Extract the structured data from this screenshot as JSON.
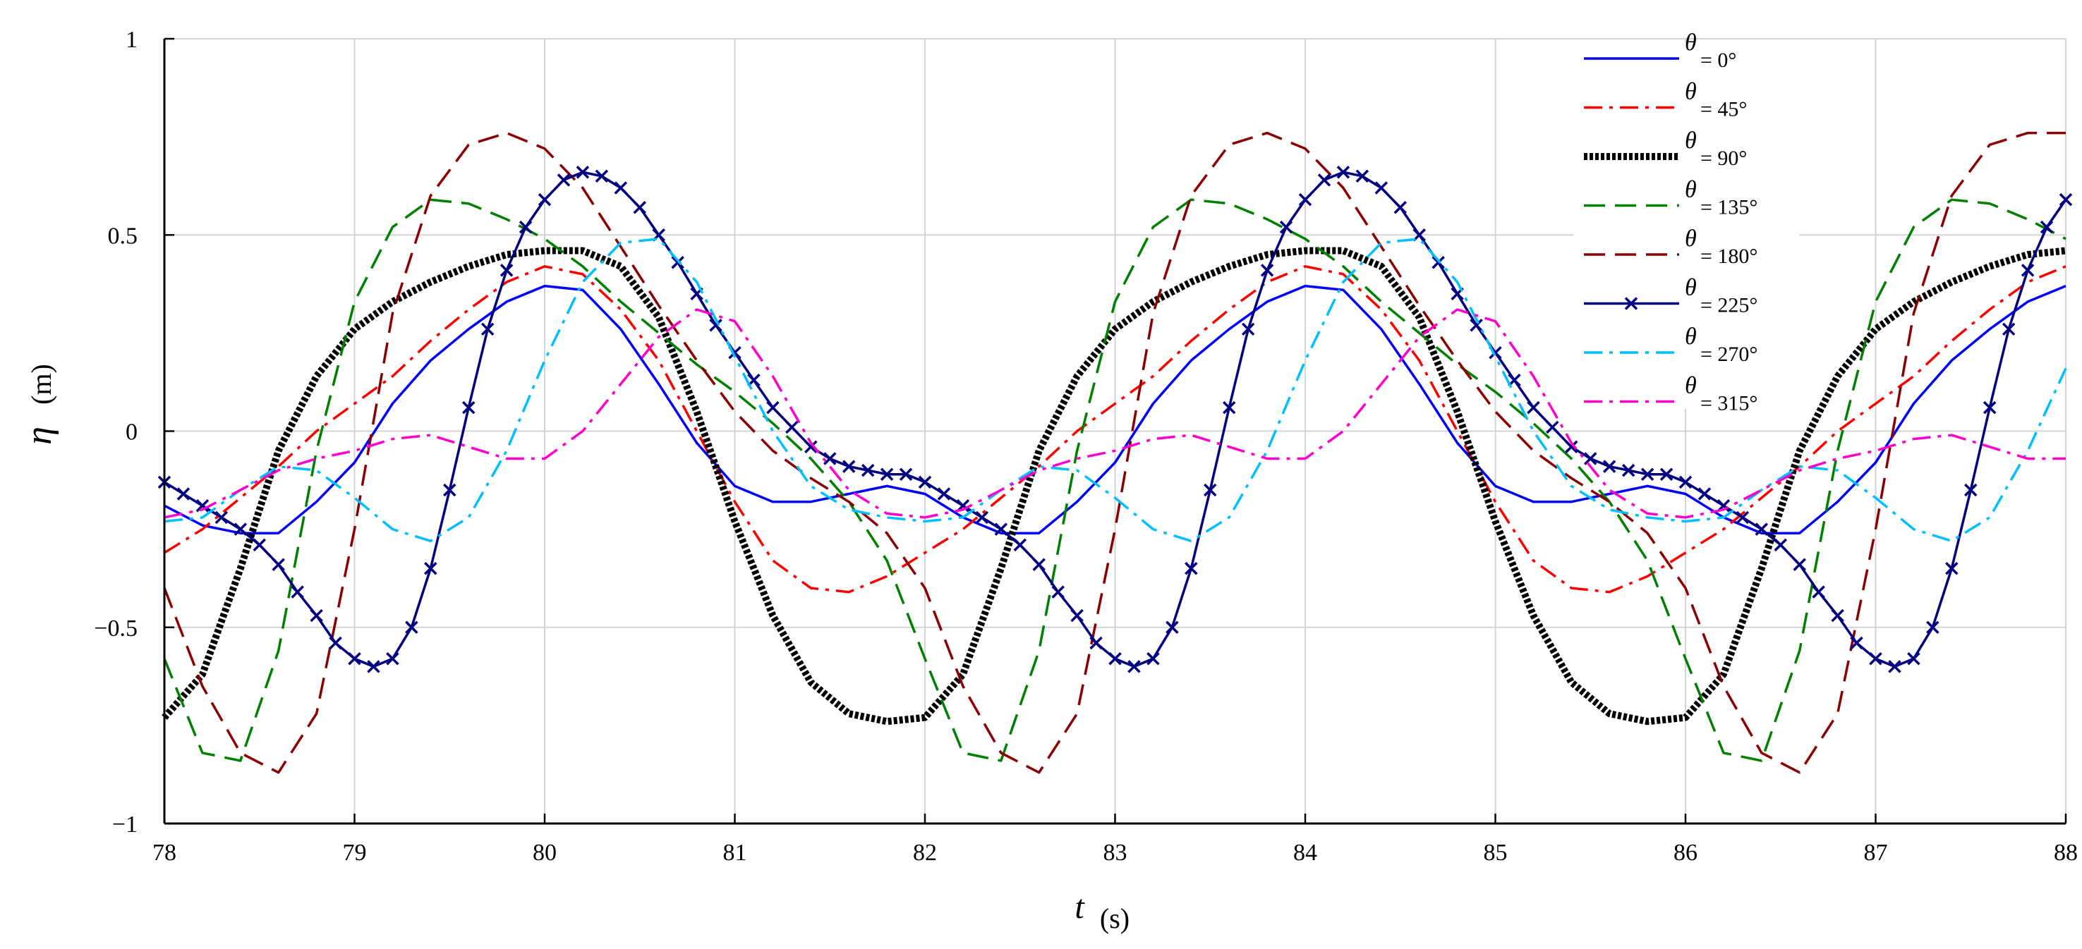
{
  "chart_data": {
    "type": "line",
    "title": "",
    "xlabel": {
      "symbol": "t",
      "unit": "(s)"
    },
    "ylabel": {
      "symbol": "η",
      "unit": "(m)"
    },
    "xlim": [
      78,
      88
    ],
    "ylim": [
      -1,
      1
    ],
    "grid": true,
    "legend_position": "top-right",
    "x_ticks": [
      {
        "value": 78,
        "label": "78"
      },
      {
        "value": 79,
        "label": "79"
      },
      {
        "value": 80,
        "label": "80"
      },
      {
        "value": 81,
        "label": "81"
      },
      {
        "value": 82,
        "label": "82"
      },
      {
        "value": 83,
        "label": "83"
      },
      {
        "value": 84,
        "label": "84"
      },
      {
        "value": 85,
        "label": "85"
      },
      {
        "value": 86,
        "label": "86"
      },
      {
        "value": 87,
        "label": "87"
      },
      {
        "value": 88,
        "label": "88"
      }
    ],
    "y_ticks": [
      {
        "value": -1,
        "label": "−1"
      },
      {
        "value": -0.5,
        "label": "−0.5"
      },
      {
        "value": 0,
        "label": "0"
      },
      {
        "value": 0.5,
        "label": "0.5"
      },
      {
        "value": 1,
        "label": "1"
      }
    ],
    "series": [
      {
        "name_symbol": "θ",
        "name": "= 0°",
        "color": "#0000FF",
        "style": "solid",
        "x": [
          78.0,
          78.2,
          78.4,
          78.6,
          78.8,
          79.0,
          79.2,
          79.4,
          79.6,
          79.8,
          80.0,
          80.2,
          80.4,
          80.6,
          80.8,
          81.0,
          81.2,
          81.4,
          81.6,
          81.8,
          82.0,
          82.2,
          82.4,
          82.6,
          82.8,
          83.0,
          83.2,
          83.4,
          83.6,
          83.8,
          84.0,
          84.2,
          84.4,
          84.6,
          84.8,
          85.0,
          85.2,
          85.4,
          85.6,
          85.8,
          86.0,
          86.2,
          86.4,
          86.6,
          86.8,
          87.0,
          87.2,
          87.4,
          87.6,
          87.8,
          88.0
        ],
        "y": [
          -0.19,
          -0.24,
          -0.26,
          -0.26,
          -0.18,
          -0.08,
          0.07,
          0.18,
          0.26,
          0.33,
          0.37,
          0.36,
          0.26,
          0.12,
          -0.03,
          -0.14,
          -0.18,
          -0.18,
          -0.16,
          -0.14,
          -0.16,
          -0.22,
          -0.26,
          -0.26,
          -0.18,
          -0.08,
          0.07,
          0.18,
          0.26,
          0.33,
          0.37,
          0.36,
          0.26,
          0.12,
          -0.03,
          -0.14,
          -0.18,
          -0.18,
          -0.16,
          -0.14,
          -0.16,
          -0.22,
          -0.26,
          -0.26,
          -0.18,
          -0.08,
          0.07,
          0.18,
          0.26,
          0.33,
          0.37
        ]
      },
      {
        "name_symbol": "θ",
        "name": "= 45°",
        "color": "#FF0000",
        "style": "dashdot",
        "x": [
          78.0,
          78.2,
          78.4,
          78.6,
          78.8,
          79.0,
          79.2,
          79.4,
          79.6,
          79.8,
          80.0,
          80.2,
          80.4,
          80.6,
          80.8,
          81.0,
          81.2,
          81.4,
          81.6,
          81.8,
          82.0,
          82.2,
          82.4,
          82.6,
          82.8,
          83.0,
          83.2,
          83.4,
          83.6,
          83.8,
          84.0,
          84.2,
          84.4,
          84.6,
          84.8,
          85.0,
          85.2,
          85.4,
          85.6,
          85.8,
          86.0,
          86.2,
          86.4,
          86.6,
          86.8,
          87.0,
          87.2,
          87.4,
          87.6,
          87.8,
          88.0
        ],
        "y": [
          -0.31,
          -0.25,
          -0.17,
          -0.09,
          0.0,
          0.07,
          0.14,
          0.23,
          0.31,
          0.38,
          0.42,
          0.4,
          0.31,
          0.18,
          0.0,
          -0.18,
          -0.33,
          -0.4,
          -0.41,
          -0.37,
          -0.31,
          -0.25,
          -0.17,
          -0.09,
          0.0,
          0.07,
          0.14,
          0.23,
          0.31,
          0.38,
          0.42,
          0.4,
          0.31,
          0.18,
          0.0,
          -0.18,
          -0.33,
          -0.4,
          -0.41,
          -0.37,
          -0.31,
          -0.25,
          -0.17,
          -0.09,
          0.0,
          0.07,
          0.14,
          0.23,
          0.31,
          0.38,
          0.42
        ]
      },
      {
        "name_symbol": "θ",
        "name": "= 90°",
        "color": "#000000",
        "style": "dotted",
        "x": [
          78.0,
          78.2,
          78.4,
          78.6,
          78.8,
          79.0,
          79.2,
          79.4,
          79.6,
          79.8,
          80.0,
          80.2,
          80.4,
          80.6,
          80.8,
          81.0,
          81.2,
          81.4,
          81.6,
          81.8,
          82.0,
          82.2,
          82.4,
          82.6,
          82.8,
          83.0,
          83.2,
          83.4,
          83.6,
          83.8,
          84.0,
          84.2,
          84.4,
          84.6,
          84.8,
          85.0,
          85.2,
          85.4,
          85.6,
          85.8,
          86.0,
          86.2,
          86.4,
          86.6,
          86.8,
          87.0,
          87.2,
          87.4,
          87.6,
          87.8,
          88.0
        ],
        "y": [
          -0.73,
          -0.62,
          -0.35,
          -0.05,
          0.14,
          0.26,
          0.33,
          0.38,
          0.42,
          0.45,
          0.46,
          0.46,
          0.42,
          0.29,
          0.05,
          -0.23,
          -0.47,
          -0.64,
          -0.72,
          -0.74,
          -0.73,
          -0.62,
          -0.35,
          -0.05,
          0.14,
          0.26,
          0.33,
          0.38,
          0.42,
          0.45,
          0.46,
          0.46,
          0.42,
          0.29,
          0.05,
          -0.23,
          -0.47,
          -0.64,
          -0.72,
          -0.74,
          -0.73,
          -0.62,
          -0.35,
          -0.05,
          0.14,
          0.26,
          0.33,
          0.38,
          0.42,
          0.45,
          0.46
        ]
      },
      {
        "name_symbol": "θ",
        "name": "= 135°",
        "color": "#008000",
        "style": "dashed",
        "x": [
          78.0,
          78.2,
          78.4,
          78.6,
          78.8,
          79.0,
          79.2,
          79.4,
          79.6,
          79.8,
          80.0,
          80.2,
          80.4,
          80.6,
          80.8,
          81.0,
          81.2,
          81.4,
          81.6,
          81.8,
          82.0,
          82.2,
          82.4,
          82.6,
          82.8,
          83.0,
          83.2,
          83.4,
          83.6,
          83.8,
          84.0,
          84.2,
          84.4,
          84.6,
          84.8,
          85.0,
          85.2,
          85.4,
          85.6,
          85.8,
          86.0,
          86.2,
          86.4,
          86.6,
          86.8,
          87.0,
          87.2,
          87.4,
          87.6,
          87.8,
          88.0
        ],
        "y": [
          -0.58,
          -0.82,
          -0.84,
          -0.56,
          -0.05,
          0.33,
          0.52,
          0.59,
          0.58,
          0.54,
          0.49,
          0.42,
          0.33,
          0.25,
          0.17,
          0.1,
          0.02,
          -0.07,
          -0.18,
          -0.33,
          -0.58,
          -0.82,
          -0.84,
          -0.56,
          -0.05,
          0.33,
          0.52,
          0.59,
          0.58,
          0.54,
          0.49,
          0.42,
          0.33,
          0.25,
          0.17,
          0.1,
          0.02,
          -0.07,
          -0.18,
          -0.33,
          -0.58,
          -0.82,
          -0.84,
          -0.56,
          -0.05,
          0.33,
          0.52,
          0.59,
          0.58,
          0.54,
          0.49
        ]
      },
      {
        "name_symbol": "θ",
        "name": "= 180°",
        "color": "#8B0000",
        "style": "longdash",
        "x": [
          78.0,
          78.2,
          78.4,
          78.6,
          78.8,
          79.0,
          79.2,
          79.4,
          79.6,
          79.8,
          80.0,
          80.2,
          80.4,
          80.6,
          80.8,
          81.0,
          81.2,
          81.4,
          81.6,
          81.8,
          82.0,
          82.2,
          82.4,
          82.6,
          82.8,
          83.0,
          83.2,
          83.4,
          83.6,
          83.8,
          84.0,
          84.2,
          84.4,
          84.6,
          84.8,
          85.0,
          85.2,
          85.4,
          85.6,
          85.8,
          86.0,
          86.2,
          86.4,
          86.6,
          86.8,
          87.0,
          87.2,
          87.4,
          87.6,
          87.8,
          88.0
        ],
        "y": [
          -0.4,
          -0.65,
          -0.82,
          -0.87,
          -0.72,
          -0.25,
          0.3,
          0.6,
          0.73,
          0.76,
          0.72,
          0.62,
          0.47,
          0.32,
          0.18,
          0.05,
          -0.05,
          -0.12,
          -0.18,
          -0.26,
          -0.4,
          -0.65,
          -0.82,
          -0.87,
          -0.72,
          -0.25,
          0.3,
          0.6,
          0.73,
          0.76,
          0.72,
          0.62,
          0.47,
          0.32,
          0.18,
          0.05,
          -0.05,
          -0.12,
          -0.18,
          -0.26,
          -0.4,
          -0.65,
          -0.82,
          -0.87,
          -0.72,
          -0.25,
          0.3,
          0.6,
          0.73,
          0.76,
          0.76
        ]
      },
      {
        "name_symbol": "θ",
        "name": "= 225°",
        "color": "#000080",
        "style": "solid-x",
        "x": [
          78.0,
          78.1,
          78.2,
          78.3,
          78.4,
          78.5,
          78.6,
          78.7,
          78.8,
          78.9,
          79.0,
          79.1,
          79.2,
          79.3,
          79.4,
          79.5,
          79.6,
          79.7,
          79.8,
          79.9,
          80.0,
          80.1,
          80.2,
          80.3,
          80.4,
          80.5,
          80.6,
          80.7,
          80.8,
          80.9,
          81.0,
          81.1,
          81.2,
          81.3,
          81.4,
          81.5,
          81.6,
          81.7,
          81.8,
          81.9,
          82.0,
          82.1,
          82.2,
          82.3,
          82.4,
          82.5,
          82.6,
          82.7,
          82.8,
          82.9,
          83.0,
          83.1,
          83.2,
          83.3,
          83.4,
          83.5,
          83.6,
          83.7,
          83.8,
          83.9,
          84.0,
          84.1,
          84.2,
          84.3,
          84.4,
          84.5,
          84.6,
          84.7,
          84.8,
          84.9,
          85.0,
          85.1,
          85.2,
          85.3,
          85.4,
          85.5,
          85.6,
          85.7,
          85.8,
          85.9,
          86.0,
          86.1,
          86.2,
          86.3,
          86.4,
          86.5,
          86.6,
          86.7,
          86.8,
          86.9,
          87.0,
          87.1,
          87.2,
          87.3,
          87.4,
          87.5,
          87.6,
          87.7,
          87.8,
          87.9,
          88.0
        ],
        "y": [
          -0.13,
          -0.16,
          -0.19,
          -0.22,
          -0.25,
          -0.29,
          -0.34,
          -0.41,
          -0.47,
          -0.54,
          -0.58,
          -0.6,
          -0.58,
          -0.5,
          -0.35,
          -0.15,
          0.06,
          0.26,
          0.41,
          0.52,
          0.59,
          0.64,
          0.66,
          0.65,
          0.62,
          0.57,
          0.5,
          0.43,
          0.35,
          0.27,
          0.2,
          0.13,
          0.06,
          0.01,
          -0.04,
          -0.07,
          -0.09,
          -0.1,
          -0.11,
          -0.11,
          -0.13,
          -0.16,
          -0.19,
          -0.22,
          -0.25,
          -0.29,
          -0.34,
          -0.41,
          -0.47,
          -0.54,
          -0.58,
          -0.6,
          -0.58,
          -0.5,
          -0.35,
          -0.15,
          0.06,
          0.26,
          0.41,
          0.52,
          0.59,
          0.64,
          0.66,
          0.65,
          0.62,
          0.57,
          0.5,
          0.43,
          0.35,
          0.27,
          0.2,
          0.13,
          0.06,
          0.01,
          -0.04,
          -0.07,
          -0.09,
          -0.1,
          -0.11,
          -0.11,
          -0.13,
          -0.16,
          -0.19,
          -0.22,
          -0.25,
          -0.29,
          -0.34,
          -0.41,
          -0.47,
          -0.54,
          -0.58,
          -0.6,
          -0.58,
          -0.5,
          -0.35,
          -0.15,
          0.06,
          0.26,
          0.41,
          0.52,
          0.59
        ]
      },
      {
        "name_symbol": "θ",
        "name": "= 270°",
        "color": "#00BFFF",
        "style": "dashdot",
        "x": [
          78.0,
          78.2,
          78.4,
          78.6,
          78.8,
          79.0,
          79.2,
          79.4,
          79.6,
          79.8,
          80.0,
          80.2,
          80.4,
          80.6,
          80.8,
          81.0,
          81.2,
          81.4,
          81.6,
          81.8,
          82.0,
          82.2,
          82.4,
          82.6,
          82.8,
          83.0,
          83.2,
          83.4,
          83.6,
          83.8,
          84.0,
          84.2,
          84.4,
          84.6,
          84.8,
          85.0,
          85.2,
          85.4,
          85.6,
          85.8,
          86.0,
          86.2,
          86.4,
          86.6,
          86.8,
          87.0,
          87.2,
          87.4,
          87.6,
          87.8,
          88.0
        ],
        "y": [
          -0.23,
          -0.22,
          -0.15,
          -0.09,
          -0.1,
          -0.17,
          -0.25,
          -0.28,
          -0.22,
          -0.05,
          0.18,
          0.38,
          0.48,
          0.49,
          0.38,
          0.19,
          0.0,
          -0.14,
          -0.2,
          -0.22,
          -0.23,
          -0.22,
          -0.15,
          -0.09,
          -0.1,
          -0.17,
          -0.25,
          -0.28,
          -0.22,
          -0.05,
          0.18,
          0.38,
          0.48,
          0.49,
          0.38,
          0.19,
          0.0,
          -0.14,
          -0.2,
          -0.22,
          -0.23,
          -0.22,
          -0.15,
          -0.09,
          -0.1,
          -0.17,
          -0.25,
          -0.28,
          -0.22,
          -0.05,
          0.16
        ]
      },
      {
        "name_symbol": "θ",
        "name": "= 315°",
        "color": "#FF00CC",
        "style": "dashdot",
        "x": [
          78.0,
          78.2,
          78.4,
          78.6,
          78.8,
          79.0,
          79.2,
          79.4,
          79.6,
          79.8,
          80.0,
          80.2,
          80.4,
          80.6,
          80.8,
          81.0,
          81.2,
          81.4,
          81.6,
          81.8,
          82.0,
          82.2,
          82.4,
          82.6,
          82.8,
          83.0,
          83.2,
          83.4,
          83.6,
          83.8,
          84.0,
          84.2,
          84.4,
          84.6,
          84.8,
          85.0,
          85.2,
          85.4,
          85.6,
          85.8,
          86.0,
          86.2,
          86.4,
          86.6,
          86.8,
          87.0,
          87.2,
          87.4,
          87.6,
          87.8,
          88.0
        ],
        "y": [
          -0.22,
          -0.2,
          -0.15,
          -0.1,
          -0.07,
          -0.05,
          -0.02,
          -0.01,
          -0.04,
          -0.07,
          -0.07,
          0.0,
          0.12,
          0.24,
          0.31,
          0.28,
          0.14,
          -0.03,
          -0.15,
          -0.21,
          -0.22,
          -0.2,
          -0.15,
          -0.1,
          -0.07,
          -0.05,
          -0.02,
          -0.01,
          -0.04,
          -0.07,
          -0.07,
          0.0,
          0.12,
          0.24,
          0.31,
          0.28,
          0.14,
          -0.03,
          -0.15,
          -0.21,
          -0.22,
          -0.2,
          -0.15,
          -0.1,
          -0.07,
          -0.05,
          -0.02,
          -0.01,
          -0.04,
          -0.07,
          -0.07
        ]
      }
    ]
  }
}
